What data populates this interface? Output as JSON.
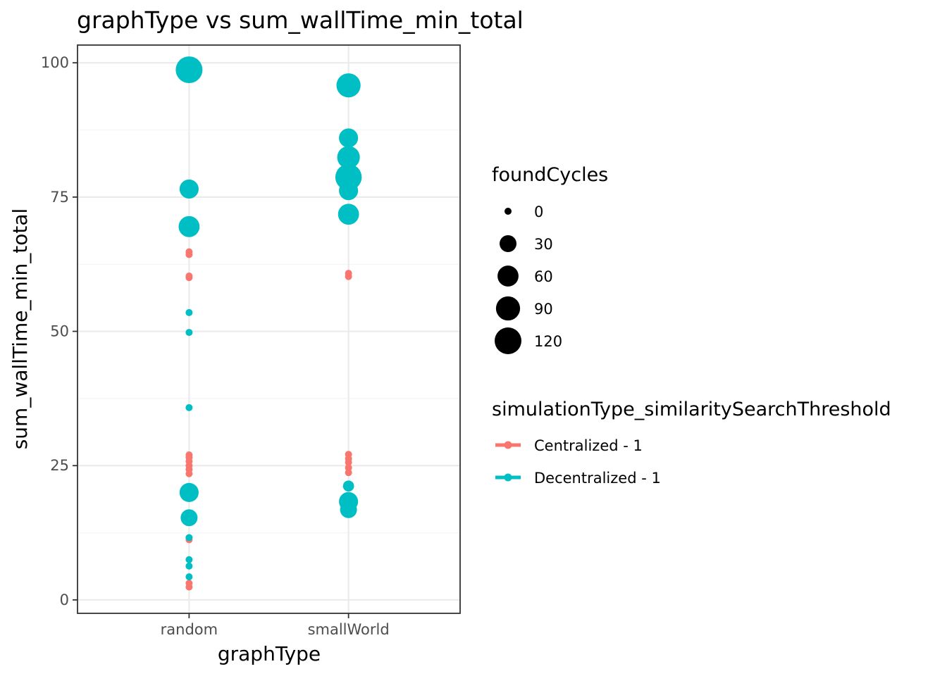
{
  "chart_data": {
    "type": "scatter",
    "title": "graphType  vs  sum_wallTime_min_total",
    "xlabel": "graphType",
    "ylabel": "sum_wallTime_min_total",
    "categories": [
      "random",
      "smallWorld"
    ],
    "ylim": [
      -2.5,
      103.3
    ],
    "yticks": [
      0,
      25,
      50,
      75,
      100
    ],
    "grid": true,
    "size_legend": {
      "title": "foundCycles",
      "values": [
        0,
        30,
        60,
        90,
        120
      ]
    },
    "color_legend": {
      "title": "simulationType_similaritySearchThreshold",
      "placement": "right"
    },
    "series": [
      {
        "name": "Centralized - 1",
        "color": "#F8766D",
        "points": [
          {
            "x": "random",
            "y": 64.8,
            "size": 0
          },
          {
            "x": "random",
            "y": 64.3,
            "size": 0
          },
          {
            "x": "random",
            "y": 60.3,
            "size": 0
          },
          {
            "x": "random",
            "y": 60.0,
            "size": 0
          },
          {
            "x": "random",
            "y": 27.0,
            "size": 0
          },
          {
            "x": "random",
            "y": 26.5,
            "size": 0
          },
          {
            "x": "random",
            "y": 25.8,
            "size": 0
          },
          {
            "x": "random",
            "y": 25.0,
            "size": 0
          },
          {
            "x": "random",
            "y": 24.3,
            "size": 0
          },
          {
            "x": "random",
            "y": 23.5,
            "size": 0
          },
          {
            "x": "random",
            "y": 21.0,
            "size": 0
          },
          {
            "x": "random",
            "y": 11.2,
            "size": 0
          },
          {
            "x": "random",
            "y": 3.1,
            "size": 0
          },
          {
            "x": "random",
            "y": 2.4,
            "size": 0
          },
          {
            "x": "smallWorld",
            "y": 60.8,
            "size": 0
          },
          {
            "x": "smallWorld",
            "y": 60.2,
            "size": 0
          },
          {
            "x": "smallWorld",
            "y": 27.1,
            "size": 0
          },
          {
            "x": "smallWorld",
            "y": 26.3,
            "size": 0
          },
          {
            "x": "smallWorld",
            "y": 25.6,
            "size": 0
          },
          {
            "x": "smallWorld",
            "y": 24.6,
            "size": 0
          },
          {
            "x": "smallWorld",
            "y": 23.7,
            "size": 0
          }
        ]
      },
      {
        "name": "Decentralized - 1",
        "color": "#00BFC4",
        "points": [
          {
            "x": "random",
            "y": 98.7,
            "size": 120
          },
          {
            "x": "random",
            "y": 76.5,
            "size": 45
          },
          {
            "x": "random",
            "y": 69.5,
            "size": 60
          },
          {
            "x": "random",
            "y": 53.5,
            "size": 0
          },
          {
            "x": "random",
            "y": 49.8,
            "size": 0
          },
          {
            "x": "random",
            "y": 35.8,
            "size": 0
          },
          {
            "x": "random",
            "y": 20.0,
            "size": 45
          },
          {
            "x": "random",
            "y": 15.3,
            "size": 30
          },
          {
            "x": "random",
            "y": 11.6,
            "size": 0
          },
          {
            "x": "random",
            "y": 7.5,
            "size": 0
          },
          {
            "x": "random",
            "y": 6.3,
            "size": 0
          },
          {
            "x": "random",
            "y": 4.3,
            "size": 0
          },
          {
            "x": "smallWorld",
            "y": 95.8,
            "size": 90
          },
          {
            "x": "smallWorld",
            "y": 86.0,
            "size": 45
          },
          {
            "x": "smallWorld",
            "y": 82.4,
            "size": 75
          },
          {
            "x": "smallWorld",
            "y": 78.7,
            "size": 115
          },
          {
            "x": "smallWorld",
            "y": 76.2,
            "size": 45
          },
          {
            "x": "smallWorld",
            "y": 71.8,
            "size": 60
          },
          {
            "x": "smallWorld",
            "y": 21.2,
            "size": 5
          },
          {
            "x": "smallWorld",
            "y": 18.3,
            "size": 45
          },
          {
            "x": "smallWorld",
            "y": 16.8,
            "size": 30
          }
        ]
      }
    ]
  }
}
